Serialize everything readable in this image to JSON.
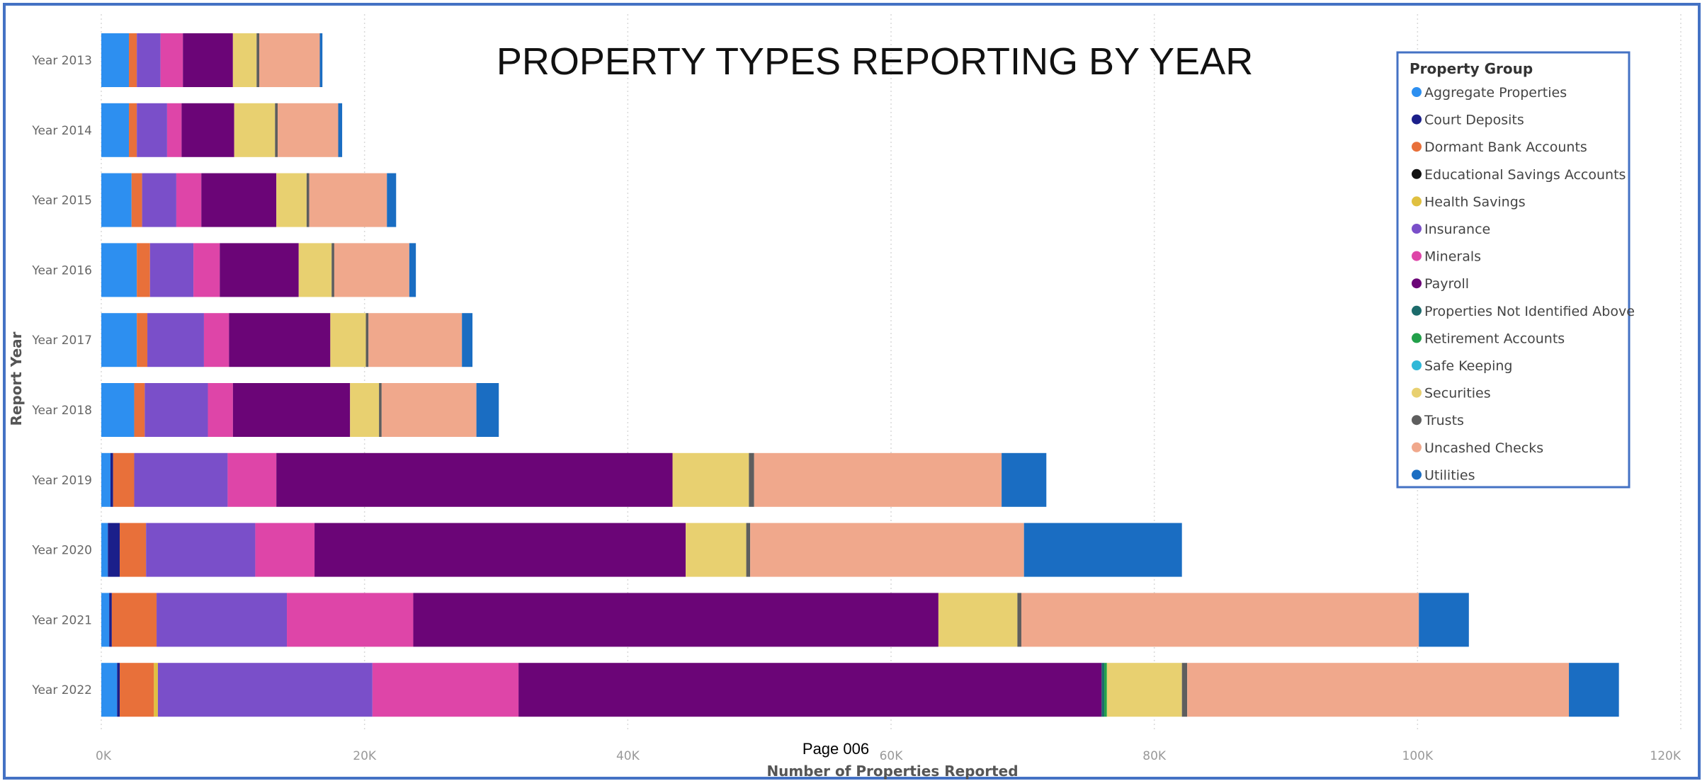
{
  "page": {
    "footer_text": "Page 006"
  },
  "chart_data": {
    "type": "bar",
    "orientation": "horizontal",
    "stacked": true,
    "title": "PROPERTY TYPES REPORTING BY YEAR",
    "xlabel": "Number of Properties Reported",
    "ylabel": "Report Year",
    "xlim": [
      0,
      120000
    ],
    "x_ticks": [
      0,
      20000,
      40000,
      60000,
      80000,
      100000,
      120000
    ],
    "x_tick_labels": [
      "0K",
      "20K",
      "40K",
      "60K",
      "80K",
      "100K",
      "120K"
    ],
    "grid": "vertical dotted",
    "legend_title": "Property Group",
    "legend_position": "top-right",
    "categories": [
      "Year 2013",
      "Year 2014",
      "Year 2015",
      "Year 2016",
      "Year 2017",
      "Year 2018",
      "Year 2019",
      "Year 2020",
      "Year 2021",
      "Year 2022"
    ],
    "series": [
      {
        "name": "Aggregate Properties",
        "color": "#2d8ff0",
        "values": [
          2100,
          2100,
          2300,
          2700,
          2700,
          2500,
          700,
          500,
          600,
          1200
        ]
      },
      {
        "name": "Court Deposits",
        "color": "#1b1f8a",
        "values": [
          0,
          0,
          0,
          0,
          0,
          0,
          200,
          900,
          200,
          200
        ]
      },
      {
        "name": "Dormant Bank Accounts",
        "color": "#e8703a",
        "values": [
          600,
          600,
          800,
          1000,
          800,
          800,
          1600,
          2000,
          3400,
          2600
        ]
      },
      {
        "name": "Educational Savings Accounts",
        "color": "#111111",
        "values": [
          0,
          0,
          0,
          0,
          0,
          0,
          0,
          0,
          0,
          0
        ]
      },
      {
        "name": "Health Savings",
        "color": "#e0c040",
        "values": [
          0,
          0,
          0,
          0,
          0,
          0,
          0,
          0,
          0,
          300
        ]
      },
      {
        "name": "Insurance",
        "color": "#7a4fc9",
        "values": [
          1800,
          2300,
          2600,
          3300,
          4300,
          4800,
          7100,
          8300,
          9900,
          16300
        ]
      },
      {
        "name": "Minerals",
        "color": "#de45a8",
        "values": [
          1700,
          1100,
          1900,
          2000,
          1900,
          1900,
          3700,
          4500,
          9600,
          11100
        ]
      },
      {
        "name": "Payroll",
        "color": "#6b0577",
        "values": [
          3800,
          4000,
          5700,
          6000,
          7700,
          8900,
          30100,
          28200,
          39900,
          44300
        ]
      },
      {
        "name": "Properties Not Identified Above",
        "color": "#1c6b6b",
        "values": [
          0,
          0,
          0,
          0,
          0,
          0,
          0,
          0,
          0,
          200
        ]
      },
      {
        "name": "Retirement Accounts",
        "color": "#22a04a",
        "values": [
          0,
          0,
          0,
          0,
          0,
          0,
          0,
          0,
          0,
          200
        ]
      },
      {
        "name": "Safe Keeping",
        "color": "#30b8d8",
        "values": [
          0,
          0,
          0,
          0,
          0,
          0,
          0,
          0,
          0,
          0
        ]
      },
      {
        "name": "Securities",
        "color": "#e8d070",
        "values": [
          1800,
          3100,
          2300,
          2500,
          2700,
          2200,
          5800,
          4600,
          6000,
          5700
        ]
      },
      {
        "name": "Trusts",
        "color": "#5e5e5e",
        "values": [
          200,
          200,
          200,
          200,
          200,
          200,
          400,
          300,
          300,
          400
        ]
      },
      {
        "name": "Uncashed Checks",
        "color": "#f0a88c",
        "values": [
          4600,
          4600,
          5900,
          5700,
          7100,
          7200,
          18800,
          20800,
          30200,
          29000
        ]
      },
      {
        "name": "Utilities",
        "color": "#1a6dc2",
        "values": [
          200,
          300,
          700,
          500,
          800,
          1700,
          3400,
          12000,
          3800,
          3800
        ]
      }
    ]
  }
}
